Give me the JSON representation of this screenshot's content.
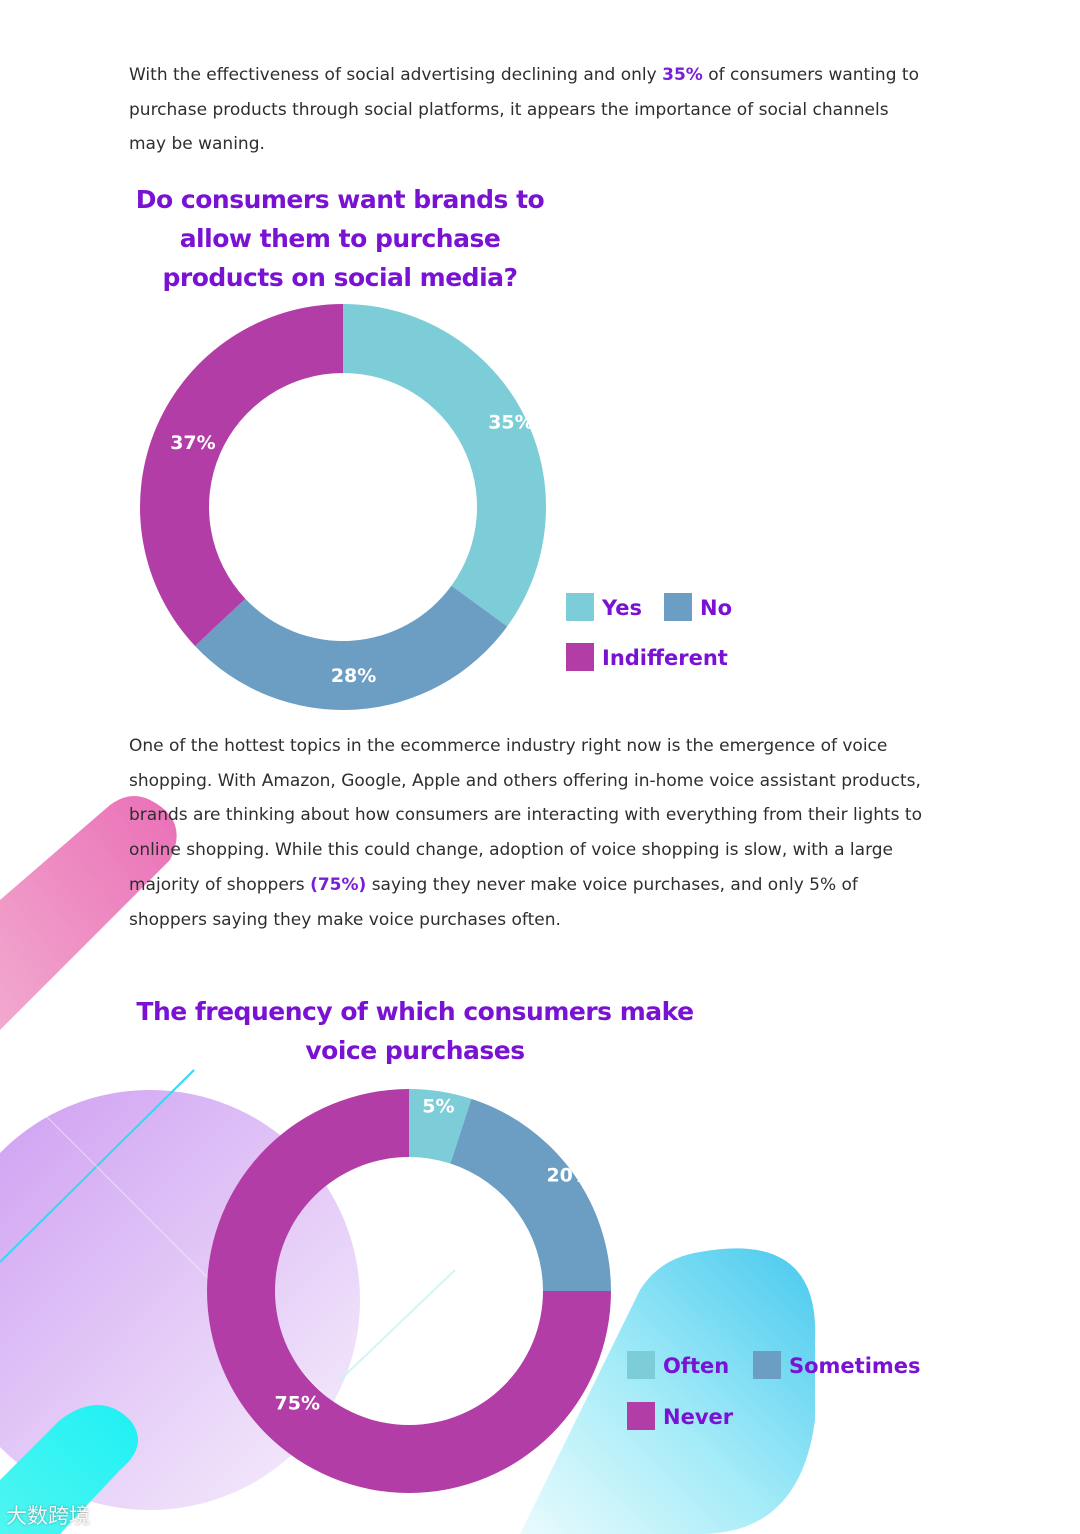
{
  "intro": {
    "before": "With the effectiveness of social advertising declining and only ",
    "highlight": "35%",
    "after": " of consumers wanting to purchase products through social platforms, it appears the importance of social channels may be waning."
  },
  "voice_text": {
    "before": "One of the hottest topics in the ecommerce industry right now is the emergence of voice shopping. With Amazon, Google, Apple and others offering in-home voice assistant products, brands are thinking about how consumers are interacting with everything from their lights to online shopping. While this could change, adoption of voice shopping is slow, with a large majority of shoppers ",
    "highlight": "(75%)",
    "after": " saying they never make voice purchases, and only 5% of shoppers saying they make voice purchases often."
  },
  "chart_data": [
    {
      "type": "pie",
      "title": "Do consumers want brands to allow them to purchase products on social media?",
      "categories": [
        "Yes",
        "No",
        "Indifferent"
      ],
      "values": [
        35,
        28,
        37
      ],
      "labels": [
        "35%",
        "28%",
        "37%"
      ],
      "colors": [
        "#7dcdd8",
        "#6c9ec4",
        "#b33da6"
      ],
      "donut": true,
      "legend_position": "bottom-right"
    },
    {
      "type": "pie",
      "title": "The frequency of which consumers make voice purchases",
      "categories": [
        "Often",
        "Sometimes",
        "Never"
      ],
      "values": [
        5,
        20,
        75
      ],
      "labels": [
        "5%",
        "20%",
        "75%"
      ],
      "colors": [
        "#7dcdd8",
        "#6c9ec4",
        "#b33da6"
      ],
      "donut": true,
      "legend_position": "right"
    }
  ],
  "watermark": "大数跨境"
}
